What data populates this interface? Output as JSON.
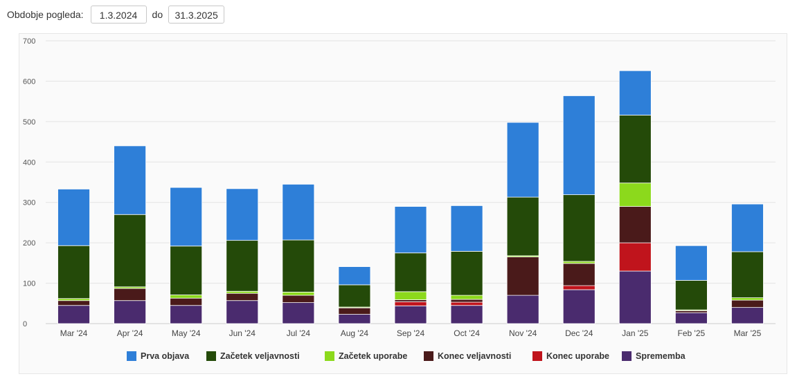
{
  "filter": {
    "label": "Obdobje pogleda:",
    "from": "1.3.2024",
    "separator": "do",
    "to": "31.3.2025"
  },
  "chart_data": {
    "type": "bar",
    "stacked": true,
    "categories": [
      "Mar '24",
      "Apr '24",
      "May '24",
      "Jun '24",
      "Jul '24",
      "Aug '24",
      "Sep '24",
      "Oct '24",
      "Nov '24",
      "Dec '24",
      "Jan '25",
      "Feb '25",
      "Mar '25"
    ],
    "ylim": [
      0,
      700
    ],
    "yticks": [
      0,
      100,
      200,
      300,
      400,
      500,
      600,
      700
    ],
    "grid": true,
    "legend_position": "bottom",
    "series": [
      {
        "name": "Sprememba",
        "color": "#4a2b6e",
        "values": [
          45,
          57,
          45,
          57,
          52,
          23,
          44,
          45,
          70,
          84,
          130,
          27,
          40
        ]
      },
      {
        "name": "Konec uporabe",
        "color": "#c0141c",
        "values": [
          0,
          0,
          0,
          0,
          0,
          0,
          10,
          8,
          0,
          10,
          70,
          0,
          0
        ]
      },
      {
        "name": "Konec veljavnosti",
        "color": "#4a1a1a",
        "values": [
          12,
          30,
          18,
          18,
          18,
          16,
          5,
          7,
          95,
          55,
          90,
          5,
          18
        ]
      },
      {
        "name": "Začetek uporabe",
        "color": "#8cd91c",
        "values": [
          5,
          4,
          8,
          5,
          8,
          2,
          20,
          10,
          3,
          5,
          58,
          2,
          6
        ]
      },
      {
        "name": "Začetek veljavnosti",
        "color": "#244a09",
        "values": [
          131,
          179,
          121,
          126,
          129,
          55,
          96,
          109,
          145,
          165,
          168,
          73,
          114
        ]
      },
      {
        "name": "Prva objava",
        "color": "#2e7fd8",
        "values": [
          140,
          170,
          145,
          128,
          138,
          45,
          115,
          113,
          185,
          245,
          110,
          86,
          118
        ]
      }
    ],
    "legend_order": [
      "Prva objava",
      "Začetek veljavnosti",
      "Začetek uporabe",
      "Konec veljavnosti",
      "Konec uporabe",
      "Sprememba"
    ]
  }
}
